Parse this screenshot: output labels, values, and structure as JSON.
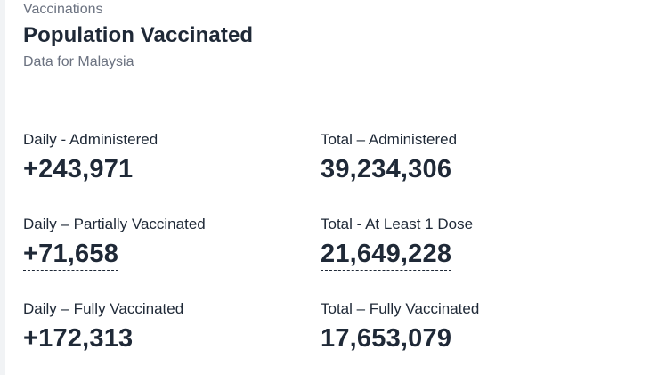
{
  "header": {
    "eyebrow": "Vaccinations",
    "title": "Population Vaccinated",
    "subtitle": "Data for Malaysia"
  },
  "stats": {
    "daily_administered": {
      "label": "Daily - Administered",
      "value": "+243,971"
    },
    "total_administered": {
      "label": "Total – Administered",
      "value": "39,234,306"
    },
    "daily_partial": {
      "label": "Daily – Partially Vaccinated",
      "value": "+71,658"
    },
    "total_dose1": {
      "label": "Total - At Least 1 Dose",
      "value": "21,649,228"
    },
    "daily_full": {
      "label": "Daily – Fully Vaccinated",
      "value": "+172,313"
    },
    "total_full": {
      "label": "Total – Fully Vaccinated",
      "value": "17,653,079"
    }
  }
}
